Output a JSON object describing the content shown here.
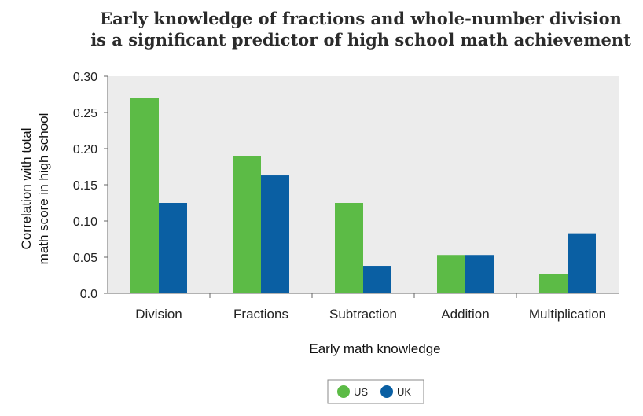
{
  "chart_data": {
    "type": "bar",
    "title": [
      "Early knowledge of fractions and whole-number division",
      "is a significant predictor of high school math achievement"
    ],
    "xlabel": "Early math knowledge",
    "ylabel": [
      "Correlation with total",
      "math score in high school"
    ],
    "categories": [
      "Division",
      "Fractions",
      "Subtraction",
      "Addition",
      "Multiplication"
    ],
    "series": [
      {
        "name": "US",
        "color": "#5cbb46",
        "values": [
          0.27,
          0.19,
          0.125,
          0.053,
          0.027
        ]
      },
      {
        "name": "UK",
        "color": "#0a5fa3",
        "values": [
          0.125,
          0.163,
          0.038,
          0.053,
          0.083
        ]
      }
    ],
    "ylim": [
      0,
      0.3
    ],
    "yticks": [
      "0.0",
      "0.05",
      "0.10",
      "0.15",
      "0.20",
      "0.25",
      "0.30"
    ],
    "grid": false,
    "plot_background": "#ececec",
    "legend_position": "bottom-center"
  }
}
